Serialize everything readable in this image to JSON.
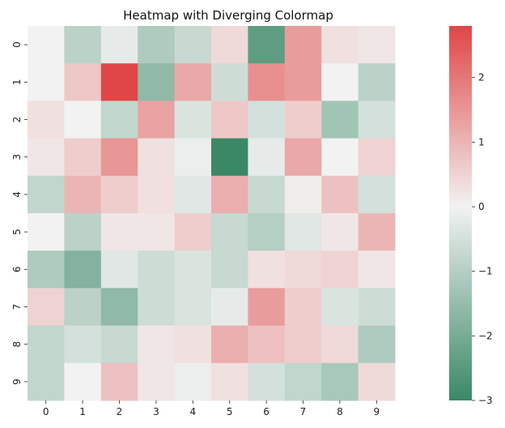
{
  "chart_data": {
    "type": "heatmap",
    "title": "Heatmap with Diverging Colormap",
    "xlabel": "",
    "ylabel": "",
    "x_categories": [
      "0",
      "1",
      "2",
      "3",
      "4",
      "5",
      "6",
      "7",
      "8",
      "9"
    ],
    "y_categories": [
      "0",
      "1",
      "2",
      "3",
      "4",
      "5",
      "6",
      "7",
      "8",
      "9"
    ],
    "values": [
      [
        0.0,
        -0.9,
        -0.2,
        -1.1,
        -0.7,
        0.4,
        -2.4,
        1.4,
        0.3,
        0.2
      ],
      [
        0.0,
        0.7,
        2.8,
        -1.6,
        1.2,
        -0.6,
        1.6,
        1.4,
        0.0,
        -0.9
      ],
      [
        0.3,
        0.0,
        -0.8,
        1.3,
        -0.4,
        0.7,
        -0.5,
        0.6,
        -1.3,
        -0.5
      ],
      [
        0.2,
        0.6,
        1.5,
        0.3,
        -0.1,
        -3.0,
        -0.2,
        1.2,
        0.0,
        0.5
      ],
      [
        -0.8,
        1.0,
        0.6,
        0.3,
        -0.3,
        1.1,
        -0.7,
        0.1,
        0.8,
        -0.5
      ],
      [
        0.0,
        -0.9,
        0.2,
        0.2,
        0.6,
        -0.7,
        -1.0,
        -0.3,
        0.2,
        1.0
      ],
      [
        -1.1,
        -1.8,
        -0.3,
        -0.6,
        -0.4,
        -0.7,
        0.3,
        0.4,
        0.5,
        0.2
      ],
      [
        0.5,
        -0.9,
        -1.6,
        -0.6,
        -0.4,
        -0.2,
        1.4,
        0.6,
        -0.4,
        -0.6
      ],
      [
        -0.8,
        -0.5,
        -0.7,
        0.2,
        0.3,
        1.1,
        0.8,
        0.6,
        0.4,
        -1.1
      ],
      [
        -0.8,
        0.0,
        0.8,
        0.2,
        -0.1,
        0.3,
        -0.5,
        -0.8,
        -1.2,
        0.4
      ]
    ],
    "vmin": -3,
    "vmax": 2.8,
    "colorbar_ticks": [
      -3,
      -2,
      -1,
      0,
      1,
      2
    ],
    "colorbar_tick_labels": [
      "−3",
      "−2",
      "−1",
      "0",
      "1",
      "2"
    ],
    "colors": {
      "low": "#3a8866",
      "mid": "#f2f2f2",
      "high": "#e04646"
    },
    "grid": false
  }
}
